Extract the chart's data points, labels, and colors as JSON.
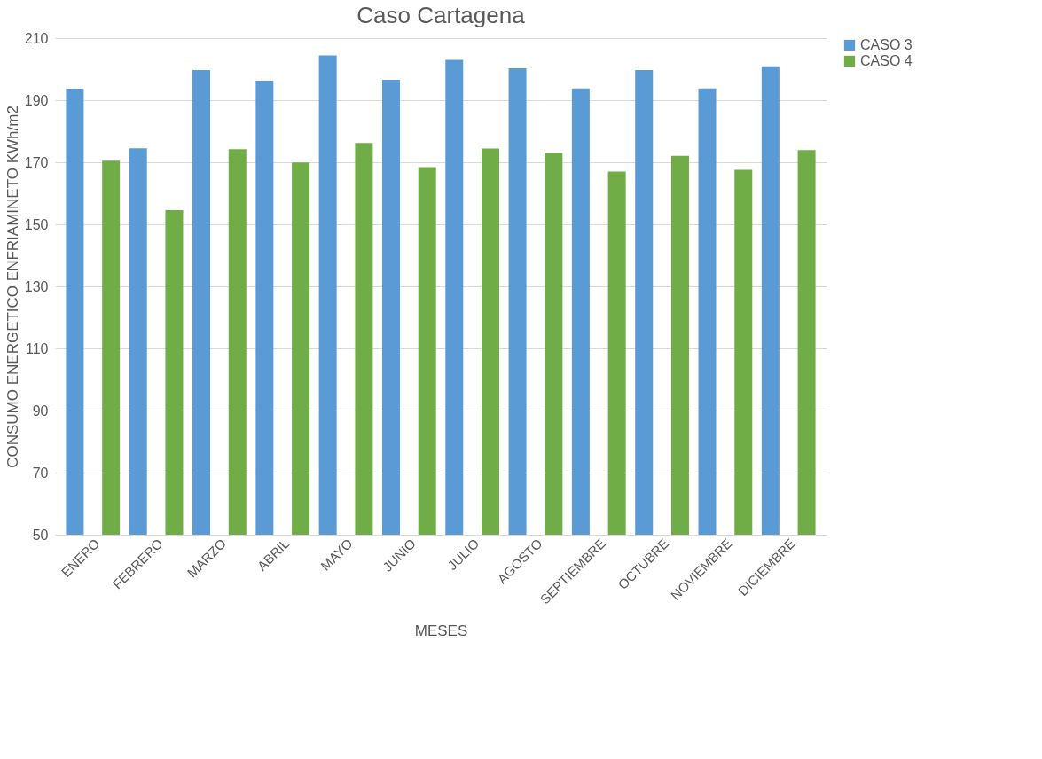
{
  "chart_data": {
    "type": "bar",
    "title": "Caso Cartagena",
    "xlabel": "MESES",
    "ylabel": "CONSUMO ENERGETICO ENFRIAMINETO KWh/m2",
    "categories": [
      "ENERO",
      "FEBRERO",
      "MARZO",
      "ABRIL",
      "MAYO",
      "JUNIO",
      "JULIO",
      "AGOSTO",
      "SEPTIEMBRE",
      "OCTUBRE",
      "NOVIEMBRE",
      "DICIEMBRE"
    ],
    "series": [
      {
        "name": "CASO 3",
        "color": "#5b9bd5",
        "values": [
          193.7,
          174.5,
          199.7,
          196.3,
          204.4,
          196.6,
          203,
          200.3,
          193.8,
          199.7,
          193.8,
          200.9
        ]
      },
      {
        "name": "CASO 4",
        "color": "#70ad47",
        "values": [
          170.5,
          154.6,
          174.2,
          169.9,
          176.2,
          168.4,
          174.4,
          173,
          167,
          172.1,
          167.6,
          173.9
        ]
      }
    ],
    "ylim": [
      50,
      210
    ],
    "yticks": [
      50,
      70,
      90,
      110,
      130,
      150,
      170,
      190,
      210
    ],
    "grid": "y",
    "legend": "right"
  }
}
